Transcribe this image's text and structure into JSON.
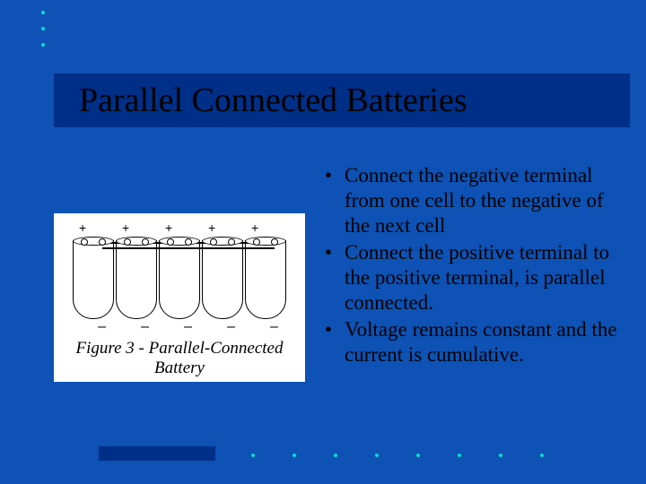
{
  "colors": {
    "slide_bg": "#0d52b4",
    "title_bar_bg": "#002f87",
    "accent_dot": "#00e0d0",
    "text": "#000000",
    "figure_bg": "#ffffff"
  },
  "title": "Parallel Connected Batteries",
  "figure": {
    "cell_count": 5,
    "plus_symbol": "+",
    "minus_symbol": "–",
    "caption_line1": "Figure 3 - Parallel-Connected",
    "caption_line2": "Battery"
  },
  "bullets": [
    "Connect the negative terminal from one cell to the negative of the next cell",
    "Connect the positive terminal to the positive terminal, is parallel connected.",
    "Voltage remains constant and the current is cumulative."
  ],
  "decor": {
    "top_dot_count": 3,
    "bottom_dot_count": 8
  }
}
